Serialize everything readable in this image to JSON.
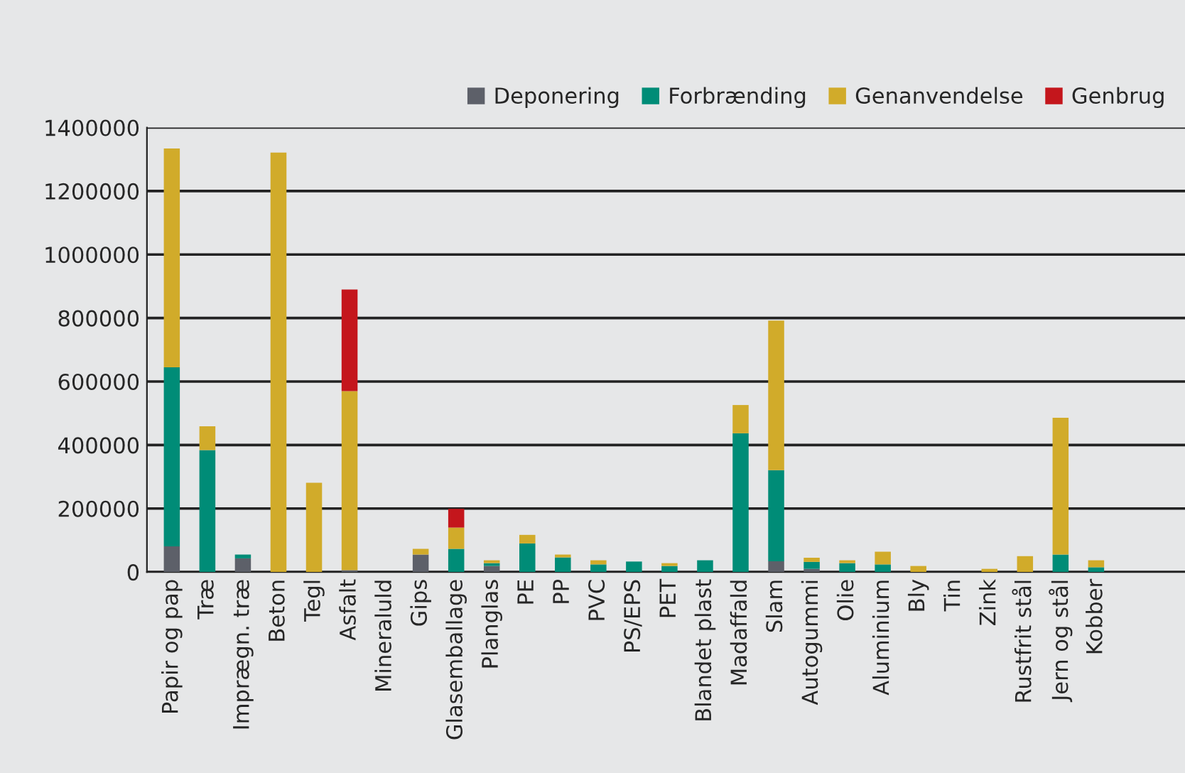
{
  "chart_data": {
    "type": "bar",
    "stacked": true,
    "categories": [
      "Papir og pap",
      "Træ",
      "Imprægn. træ",
      "Beton",
      "Tegl",
      "Asfalt",
      "Mineraluld",
      "Gips",
      "Glasemballage",
      "Planglas",
      "PE",
      "PP",
      "PVC",
      "PS/EPS",
      "PET",
      "Blandet plast",
      "Madaffald",
      "Slam",
      "Autogummi",
      "Olie",
      "Aluminium",
      "Bly",
      "Tin",
      "Zink",
      "Rustfrit stål",
      "Jern og stål",
      "Kobber"
    ],
    "series": [
      {
        "name": "Deponering",
        "color": "#5d6069",
        "values": [
          81000,
          0,
          43000,
          0,
          0,
          6000,
          0,
          55000,
          0,
          19000,
          0,
          0,
          0,
          0,
          0,
          0,
          0,
          34000,
          10000,
          0,
          0,
          0,
          0,
          0,
          0,
          0,
          0
        ]
      },
      {
        "name": "Forbrænding",
        "color": "#008c77",
        "values": [
          564000,
          384000,
          12000,
          0,
          0,
          0,
          0,
          0,
          73000,
          9000,
          90000,
          46000,
          24000,
          33000,
          19000,
          37000,
          437000,
          287000,
          22000,
          28000,
          24000,
          0,
          0,
          0,
          0,
          55000,
          15000
        ]
      },
      {
        "name": "Genanvendelse",
        "color": "#d1ab2a",
        "values": [
          689000,
          75000,
          0,
          1321000,
          281000,
          564000,
          0,
          18000,
          67000,
          9000,
          27000,
          9000,
          13000,
          0,
          9000,
          0,
          89000,
          471000,
          13000,
          9000,
          40000,
          19000,
          0,
          10000,
          50000,
          431000,
          22000
        ]
      },
      {
        "name": "Genbrug",
        "color": "#c4161c",
        "values": [
          0,
          0,
          0,
          0,
          0,
          320000,
          0,
          0,
          59000,
          0,
          0,
          0,
          0,
          0,
          0,
          0,
          0,
          0,
          0,
          0,
          0,
          0,
          0,
          0,
          0,
          0,
          0
        ]
      }
    ],
    "ylim": [
      0,
      1400000
    ],
    "yticks": [
      0,
      200000,
      400000,
      600000,
      800000,
      1000000,
      1200000,
      1400000
    ],
    "grid": "y",
    "legend": "top right"
  }
}
